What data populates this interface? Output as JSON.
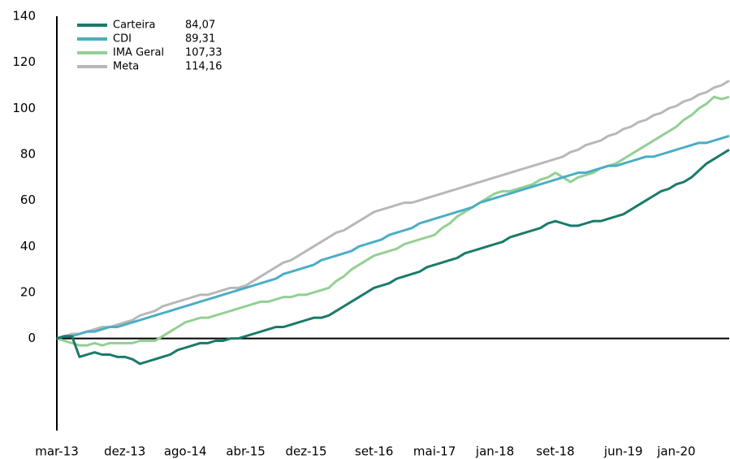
{
  "chart_data": {
    "type": "line",
    "categories": [
      "mar-13",
      null,
      null,
      null,
      null,
      null,
      null,
      null,
      null,
      "dez-13",
      null,
      null,
      null,
      null,
      null,
      null,
      null,
      "ago-14",
      null,
      null,
      null,
      null,
      null,
      null,
      null,
      "abr-15",
      null,
      null,
      null,
      null,
      null,
      null,
      null,
      "dez-15",
      null,
      null,
      null,
      null,
      null,
      null,
      null,
      null,
      "set-16",
      null,
      null,
      null,
      null,
      null,
      null,
      null,
      "mai-17",
      null,
      null,
      null,
      null,
      null,
      null,
      null,
      "jan-18",
      null,
      null,
      null,
      null,
      null,
      null,
      null,
      "set-18",
      null,
      null,
      null,
      null,
      null,
      null,
      null,
      null,
      "jun-19",
      null,
      null,
      null,
      null,
      null,
      null,
      "jan-20",
      null,
      null,
      null,
      null,
      null,
      null,
      null
    ],
    "ylim": [
      -40,
      140
    ],
    "yticks": [
      0,
      20,
      40,
      60,
      80,
      100,
      120,
      140
    ],
    "grid": false,
    "legend": "upper left",
    "series": [
      {
        "name": "Carteira",
        "legend_value": "84,07",
        "color": "#1a7a6a",
        "values": [
          0,
          1,
          1,
          -8,
          -7,
          -6,
          -7,
          -7,
          -8,
          -8,
          -9,
          -11,
          -10,
          -9,
          -8,
          -7,
          -5,
          -4,
          -3,
          -2,
          -2,
          -1,
          -1,
          0,
          0,
          1,
          2,
          3,
          4,
          5,
          5,
          6,
          7,
          8,
          9,
          9,
          10,
          12,
          14,
          16,
          18,
          20,
          22,
          23,
          24,
          26,
          27,
          28,
          29,
          31,
          32,
          33,
          34,
          35,
          37,
          38,
          39,
          40,
          41,
          42,
          44,
          45,
          46,
          47,
          48,
          50,
          51,
          50,
          49,
          49,
          50,
          51,
          51,
          52,
          53,
          54,
          56,
          58,
          60,
          62,
          64,
          65,
          67,
          68,
          70,
          73,
          76,
          78,
          80,
          82
        ]
      },
      {
        "name": "CDI",
        "legend_value": "89,31",
        "color": "#4aaec4",
        "values": [
          0,
          1,
          1,
          2,
          3,
          3,
          4,
          5,
          5,
          6,
          7,
          8,
          9,
          10,
          11,
          12,
          13,
          14,
          15,
          16,
          17,
          18,
          19,
          20,
          21,
          22,
          23,
          24,
          25,
          26,
          28,
          29,
          30,
          31,
          32,
          34,
          35,
          36,
          37,
          38,
          40,
          41,
          42,
          43,
          45,
          46,
          47,
          48,
          50,
          51,
          52,
          53,
          54,
          55,
          56,
          57,
          59,
          60,
          61,
          62,
          63,
          64,
          65,
          66,
          67,
          68,
          69,
          70,
          71,
          72,
          72,
          73,
          74,
          75,
          75,
          76,
          77,
          78,
          79,
          79,
          80,
          81,
          82,
          83,
          84,
          85,
          85,
          86,
          87,
          88
        ]
      },
      {
        "name": "IMA Geral",
        "legend_value": "107,33",
        "color": "#94cf94",
        "values": [
          0,
          -1,
          -2,
          -3,
          -3,
          -2,
          -3,
          -2,
          -2,
          -2,
          -2,
          -1,
          -1,
          -1,
          1,
          3,
          5,
          7,
          8,
          9,
          9,
          10,
          11,
          12,
          13,
          14,
          15,
          16,
          16,
          17,
          18,
          18,
          19,
          19,
          20,
          21,
          22,
          25,
          27,
          30,
          32,
          34,
          36,
          37,
          38,
          39,
          41,
          42,
          43,
          44,
          45,
          48,
          50,
          53,
          55,
          57,
          59,
          61,
          63,
          64,
          64,
          65,
          66,
          67,
          69,
          70,
          72,
          70,
          68,
          70,
          71,
          72,
          74,
          75,
          76,
          78,
          80,
          82,
          84,
          86,
          88,
          90,
          92,
          95,
          97,
          100,
          102,
          105,
          104,
          105
        ]
      },
      {
        "name": "Meta",
        "legend_value": "114,16",
        "color": "#b8b8b8",
        "values": [
          0,
          1,
          2,
          2,
          3,
          4,
          5,
          5,
          6,
          7,
          8,
          10,
          11,
          12,
          14,
          15,
          16,
          17,
          18,
          19,
          19,
          20,
          21,
          22,
          22,
          23,
          25,
          27,
          29,
          31,
          33,
          34,
          36,
          38,
          40,
          42,
          44,
          46,
          47,
          49,
          51,
          53,
          55,
          56,
          57,
          58,
          59,
          59,
          60,
          61,
          62,
          63,
          64,
          65,
          66,
          67,
          68,
          69,
          70,
          71,
          72,
          73,
          74,
          75,
          76,
          77,
          78,
          79,
          81,
          82,
          84,
          85,
          86,
          88,
          89,
          91,
          92,
          94,
          95,
          97,
          98,
          100,
          101,
          103,
          104,
          106,
          107,
          109,
          110,
          112
        ]
      }
    ]
  }
}
